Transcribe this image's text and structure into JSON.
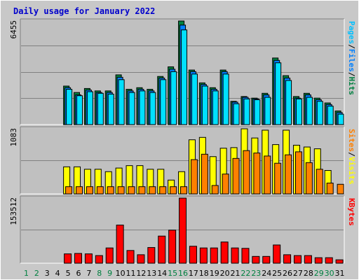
{
  "chart_data": {
    "type": "bar",
    "title": "Daily usage for January 2022",
    "categories": [
      "1",
      "2",
      "3",
      "4",
      "5",
      "6",
      "7",
      "8",
      "9",
      "10",
      "11",
      "12",
      "13",
      "14",
      "15",
      "16",
      "17",
      "18",
      "19",
      "20",
      "21",
      "22",
      "23",
      "24",
      "25",
      "26",
      "27",
      "28",
      "29",
      "30",
      "31"
    ],
    "weekend_days": [
      "1",
      "2",
      "8",
      "9",
      "15",
      "16",
      "22",
      "23",
      "29",
      "30"
    ],
    "colors": {
      "hits": "#008040",
      "files": "#0080ff",
      "pages": "#00e0ff",
      "visits": "#ffff00",
      "sites": "#ff8000",
      "kbytes": "#ff0000",
      "weekday_label": "#000000",
      "weekend_label": "#008040",
      "title": "#0000cc"
    },
    "panels": [
      {
        "name": "hits-files-pages",
        "ymax": 6455,
        "ymax_label": "6455",
        "legend": [
          "Pages",
          "/",
          "Files",
          "/",
          "Hits"
        ],
        "legend_colors": [
          "#00c0ff",
          "#000000",
          "#0080ff",
          "#000000",
          "#008040"
        ],
        "series": [
          {
            "name": "Hits",
            "values": [
              0,
              0,
              0,
              0,
              2400,
              2000,
              2250,
              2100,
              2100,
              3100,
              2200,
              2300,
              2200,
              3000,
              3600,
              6455,
              3400,
              2600,
              2300,
              3400,
              1450,
              1750,
              1650,
              1950,
              4150,
              3050,
              1750,
              1950,
              1650,
              1350,
              850
            ]
          },
          {
            "name": "Files",
            "values": [
              0,
              0,
              0,
              0,
              2300,
              1850,
              2150,
              2000,
              2000,
              2950,
              2100,
              2200,
              2100,
              2900,
              3450,
              6200,
              3300,
              2500,
              2200,
              3300,
              1400,
              1700,
              1600,
              1850,
              4000,
              2900,
              1650,
              1850,
              1550,
              1250,
              750
            ]
          },
          {
            "name": "Pages",
            "values": [
              0,
              0,
              0,
              0,
              2200,
              1800,
              2050,
              1950,
              1900,
              2800,
              2000,
              2100,
              2000,
              2800,
              3300,
              5900,
              3150,
              2400,
              2100,
              3150,
              1300,
              1600,
              1550,
              1700,
              3850,
              2750,
              1600,
              1700,
              1450,
              1150,
              650
            ]
          }
        ]
      },
      {
        "name": "visits-sites",
        "ymax": 1083,
        "ymax_label": "1083",
        "legend": [
          "Sites",
          "/",
          "Visits"
        ],
        "legend_colors": [
          "#ff8000",
          "#000000",
          "#ffff00"
        ],
        "series": [
          {
            "name": "Visits",
            "values": [
              0,
              0,
              0,
              0,
              450,
              450,
              410,
              410,
              370,
              430,
              470,
              470,
              410,
              410,
              230,
              370,
              900,
              940,
              620,
              760,
              770,
              1083,
              930,
              1060,
              820,
              1060,
              810,
              780,
              750,
              390,
              0
            ]
          },
          {
            "name": "Sites",
            "values": [
              0,
              0,
              0,
              0,
              120,
              120,
              120,
              120,
              120,
              120,
              120,
              120,
              120,
              120,
              120,
              120,
              570,
              660,
              140,
              330,
              590,
              720,
              680,
              630,
              510,
              650,
              700,
              520,
              410,
              180,
              160
            ]
          }
        ]
      },
      {
        "name": "kbytes",
        "ymax": 153512,
        "ymax_label": "153512",
        "legend": [
          "KBytes"
        ],
        "legend_colors": [
          "#ff0000"
        ],
        "series": [
          {
            "name": "KBytes",
            "values": [
              0,
              0,
              0,
              0,
              22000,
              23000,
              22000,
              18000,
              36000,
              90000,
              30000,
              20000,
              37000,
              64000,
              78000,
              153512,
              40000,
              36000,
              36000,
              50000,
              36000,
              35000,
              16000,
              16000,
              43000,
              20000,
              18000,
              18000,
              13000,
              13000,
              8000
            ]
          }
        ]
      }
    ]
  }
}
